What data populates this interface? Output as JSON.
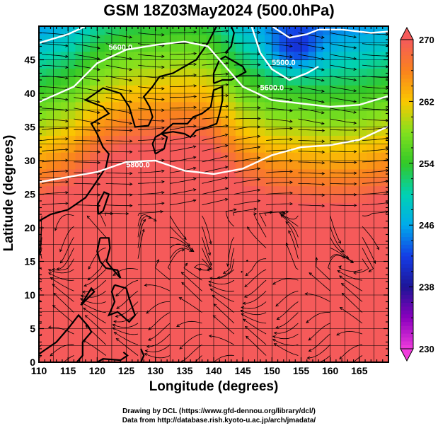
{
  "title": "GSM 18Z03May2024 (500.0hPa)",
  "xlabel": "Longitude (degrees)",
  "ylabel": "Latitude  (degrees)",
  "credits": {
    "line1": "Drawing by DCL (https://www.gfd-dennou.org/library/dcl/)",
    "line2": "Data from http://database.rish.kyoto-u.ac.jp/arch/jmadata/"
  },
  "chart_data": {
    "type": "heatmap",
    "xlim": [
      110,
      170
    ],
    "ylim": [
      0,
      50
    ],
    "x_ticks": [
      110,
      115,
      120,
      125,
      130,
      135,
      140,
      145,
      150,
      155,
      160,
      165
    ],
    "y_ticks": [
      0,
      5,
      10,
      15,
      20,
      25,
      30,
      35,
      40,
      45
    ],
    "colorbar": {
      "min": 230,
      "max": 270,
      "ticks": [
        230,
        238,
        246,
        254,
        262,
        270
      ]
    },
    "contours": [
      {
        "label": "5800.0",
        "points": [
          [
            110,
            26.8
          ],
          [
            120,
            28.3
          ],
          [
            125,
            29.8
          ],
          [
            130,
            30
          ],
          [
            135,
            28.5
          ],
          [
            140,
            28
          ],
          [
            145,
            28.8
          ],
          [
            150,
            30.8
          ],
          [
            155,
            32
          ],
          [
            160,
            32.3
          ],
          [
            165,
            33.1
          ],
          [
            170,
            35.1
          ]
        ]
      },
      {
        "label": "5600.0",
        "points": [
          [
            110,
            38.7
          ],
          [
            116,
            41
          ],
          [
            120,
            44.5
          ],
          [
            125,
            46.5
          ],
          [
            130,
            47.2
          ],
          [
            135,
            47.7
          ],
          [
            139,
            47
          ],
          [
            142,
            44
          ],
          [
            145,
            41
          ],
          [
            150,
            39
          ],
          [
            155,
            38.5
          ],
          [
            160,
            38
          ],
          [
            165,
            38.3
          ],
          [
            170,
            39.6
          ]
        ]
      },
      {
        "label": "5600.0",
        "points": [
          [
            146.5,
            50
          ],
          [
            148,
            46
          ],
          [
            150,
            43.6
          ],
          [
            153,
            42
          ],
          [
            156,
            43
          ],
          [
            158,
            44
          ]
        ]
      },
      {
        "label": "5500.0",
        "points": [
          [
            150,
            50
          ],
          [
            153,
            48.3
          ],
          [
            156,
            48.8
          ],
          [
            158,
            49.5
          ],
          [
            162,
            49.5
          ],
          [
            167,
            49
          ],
          [
            170,
            49.2
          ]
        ]
      },
      {
        "label": "",
        "points": [
          [
            110,
            47.5
          ],
          [
            115,
            48.8
          ],
          [
            118,
            50
          ]
        ]
      }
    ]
  }
}
